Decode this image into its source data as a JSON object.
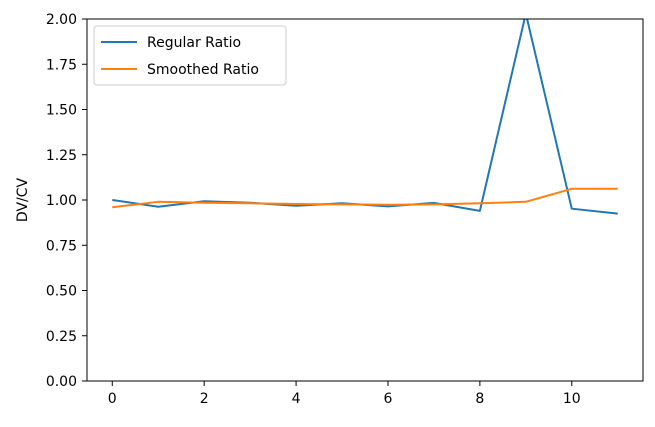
{
  "chart_data": {
    "type": "line",
    "title": "",
    "xlabel": "",
    "ylabel": "DV/CV",
    "xlim": [
      -0.55,
      11.55
    ],
    "ylim": [
      0.0,
      2.0
    ],
    "x_ticks": [
      0,
      2,
      4,
      6,
      8,
      10
    ],
    "x_tick_labels": [
      "0",
      "2",
      "4",
      "6",
      "8",
      "10"
    ],
    "y_ticks": [
      0.0,
      0.25,
      0.5,
      0.75,
      1.0,
      1.25,
      1.5,
      1.75,
      2.0
    ],
    "y_tick_labels": [
      "0.00",
      "0.25",
      "0.50",
      "0.75",
      "1.00",
      "1.25",
      "1.50",
      "1.75",
      "2.00"
    ],
    "grid": false,
    "legend_position": "top-left",
    "x": [
      0,
      1,
      2,
      3,
      4,
      5,
      6,
      7,
      8,
      9,
      10,
      11
    ],
    "series": [
      {
        "name": "Regular Ratio",
        "color": "#1f77b4",
        "values": [
          1.0,
          0.963,
          0.993,
          0.985,
          0.968,
          0.982,
          0.965,
          0.984,
          0.94,
          2.03,
          0.952,
          0.925
        ]
      },
      {
        "name": "Smoothed Ratio",
        "color": "#ff7f0e",
        "values": [
          0.96,
          0.99,
          0.985,
          0.982,
          0.978,
          0.976,
          0.974,
          0.976,
          0.982,
          0.99,
          1.062,
          1.062
        ]
      }
    ]
  }
}
